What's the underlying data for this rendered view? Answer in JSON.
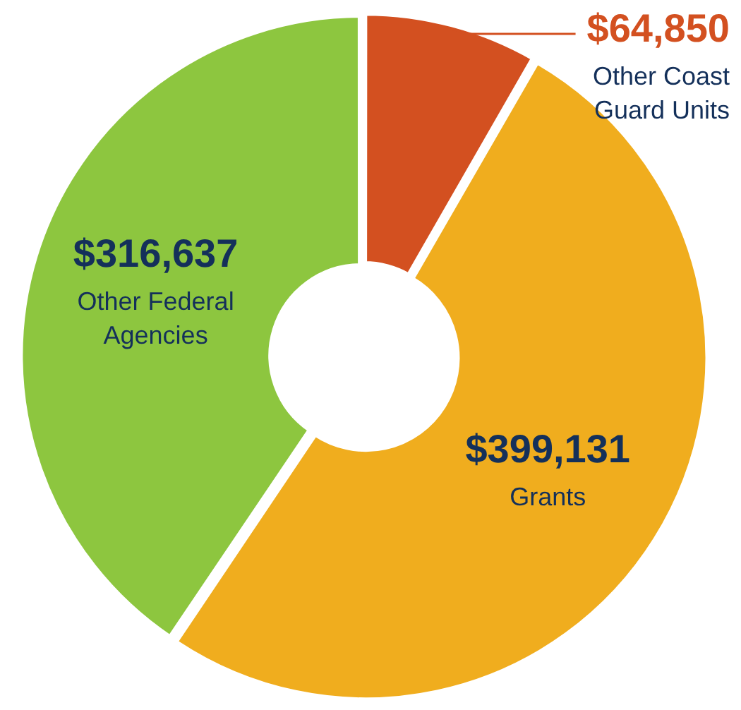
{
  "chart_data": {
    "type": "donut",
    "categories": [
      "Other Coast Guard Units",
      "Grants",
      "Other Federal Agencies"
    ],
    "values": [
      64850,
      399131,
      316637
    ],
    "colors": [
      "#d35020",
      "#f0ad1e",
      "#8dc63f"
    ],
    "value_labels": [
      "$64,850",
      "$399,131",
      "$316,637"
    ]
  }
}
